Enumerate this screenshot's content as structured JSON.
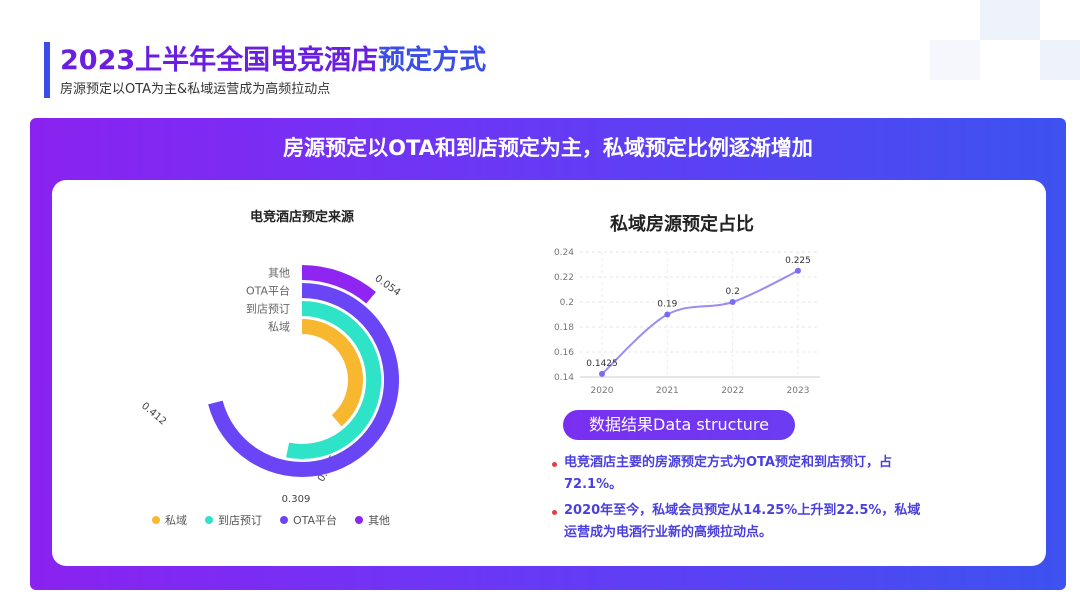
{
  "header": {
    "title_main": "2023上半年全国电竞酒店",
    "title_highlight": "预定方式",
    "subtitle": "房源预定以OTA为主&私域运营成为高频拉动点"
  },
  "panel": {
    "title": "房源预定以OTA和到店预定为主，私域预定比例逐渐增加"
  },
  "colors": {
    "private": "#f7b82f",
    "walkin": "#2fe3c8",
    "ota": "#6a45f5",
    "other": "#8e25f0",
    "line": "#9a8cf0"
  },
  "chart_data": [
    {
      "type": "radial-bar",
      "title": "电竞酒店预定来源",
      "series": [
        {
          "name": "私域",
          "value": 0.225
        },
        {
          "name": "到店预订",
          "value": 0.309
        },
        {
          "name": "OTA平台",
          "value": 0.412
        },
        {
          "name": "其他",
          "value": 0.054
        }
      ],
      "legend": "bottom"
    },
    {
      "type": "line",
      "title": "私域房源预定占比",
      "x": [
        "2020",
        "2021",
        "2022",
        "2023"
      ],
      "values": [
        0.1425,
        0.19,
        0.2,
        0.225
      ],
      "data_labels": [
        "0.1425",
        "0.19",
        "0.2",
        "0.225"
      ],
      "y_ticks": [
        "0.14",
        "0.16",
        "0.18",
        "0.2",
        "0.22",
        "0.24"
      ],
      "ylim": [
        0.14,
        0.24
      ],
      "grid": true
    }
  ],
  "data_structure": {
    "label": "数据结果Data structure"
  },
  "bullets": [
    "电竞酒店主要的房源预定方式为OTA预定和到店预订，占72.1%。",
    "2020年至今，私域会员预定从14.25%上升到22.5%，私域运营成为电酒行业新的高频拉动点。"
  ]
}
